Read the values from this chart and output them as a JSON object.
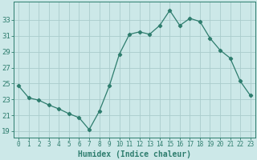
{
  "xlabel": "Humidex (Indice chaleur)",
  "x_values": [
    0,
    1,
    2,
    3,
    4,
    5,
    6,
    7,
    8,
    9,
    10,
    11,
    12,
    13,
    14,
    15,
    16,
    17,
    18,
    19,
    20,
    21,
    22,
    23
  ],
  "y_values": [
    24.7,
    23.2,
    22.9,
    22.3,
    21.8,
    21.2,
    20.7,
    19.2,
    21.5,
    24.7,
    28.7,
    31.2,
    31.5,
    31.2,
    32.3,
    34.2,
    32.3,
    33.2,
    32.8,
    30.7,
    29.2,
    28.2,
    25.3,
    23.5
  ],
  "line_color": "#2e7d6e",
  "marker": "D",
  "marker_size": 2.2,
  "bg_color": "#cce8e8",
  "grid_color": "#aacccc",
  "yticks": [
    19,
    21,
    23,
    25,
    27,
    29,
    31,
    33
  ],
  "ylim": [
    18.2,
    35.3
  ],
  "xlim": [
    -0.5,
    23.5
  ],
  "tick_label_color": "#2e7d6e",
  "axis_label_color": "#2e7d6e",
  "font_family": "monospace",
  "xlabel_fontsize": 7,
  "ytick_fontsize": 6.5,
  "xtick_fontsize": 5.5
}
